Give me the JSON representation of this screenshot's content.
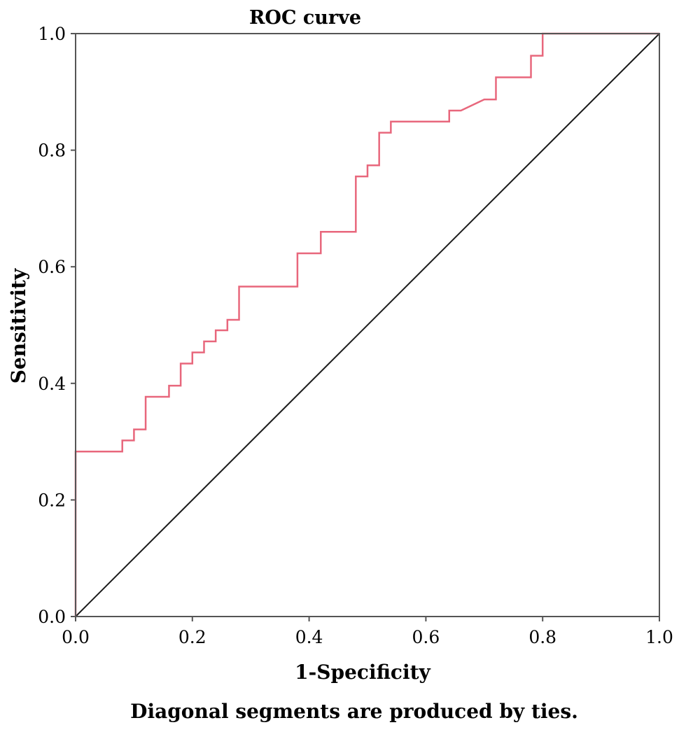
{
  "chart_data": {
    "type": "line",
    "title": "ROC curve",
    "xlabel": "1-Specificity",
    "ylabel": "Sensitivity",
    "footnote": "Diagonal segments are produced by ties.",
    "xlim": [
      0,
      1
    ],
    "ylim": [
      0,
      1
    ],
    "x_ticks": [
      "0.0",
      "0.2",
      "0.4",
      "0.6",
      "0.8",
      "1.0"
    ],
    "y_ticks": [
      "0.0",
      "0.2",
      "0.4",
      "0.6",
      "0.8",
      "1.0"
    ],
    "grid": false,
    "colors": {
      "roc": "#e8677c",
      "reference": "#1a1a1a",
      "frame": "#555555"
    },
    "series": [
      {
        "values": [
          [
            0.0,
            0.0
          ],
          [
            0.0,
            0.283
          ],
          [
            0.08,
            0.283
          ],
          [
            0.08,
            0.302
          ],
          [
            0.1,
            0.302
          ],
          [
            0.1,
            0.321
          ],
          [
            0.12,
            0.321
          ],
          [
            0.12,
            0.377
          ],
          [
            0.16,
            0.377
          ],
          [
            0.16,
            0.396
          ],
          [
            0.18,
            0.396
          ],
          [
            0.18,
            0.434
          ],
          [
            0.2,
            0.434
          ],
          [
            0.2,
            0.453
          ],
          [
            0.22,
            0.453
          ],
          [
            0.22,
            0.472
          ],
          [
            0.24,
            0.472
          ],
          [
            0.24,
            0.491
          ],
          [
            0.26,
            0.491
          ],
          [
            0.26,
            0.509
          ],
          [
            0.28,
            0.509
          ],
          [
            0.28,
            0.566
          ],
          [
            0.38,
            0.566
          ],
          [
            0.38,
            0.623
          ],
          [
            0.42,
            0.623
          ],
          [
            0.42,
            0.66
          ],
          [
            0.48,
            0.66
          ],
          [
            0.48,
            0.755
          ],
          [
            0.5,
            0.755
          ],
          [
            0.5,
            0.774
          ],
          [
            0.52,
            0.774
          ],
          [
            0.52,
            0.83
          ],
          [
            0.54,
            0.83
          ],
          [
            0.54,
            0.849
          ],
          [
            0.64,
            0.849
          ],
          [
            0.64,
            0.868
          ],
          [
            0.66,
            0.868
          ],
          [
            0.7,
            0.887
          ],
          [
            0.72,
            0.887
          ],
          [
            0.72,
            0.925
          ],
          [
            0.78,
            0.925
          ],
          [
            0.78,
            0.962
          ],
          [
            0.8,
            0.962
          ],
          [
            0.8,
            1.0
          ],
          [
            1.0,
            1.0
          ]
        ]
      },
      {
        "values": [
          [
            0.0,
            0.0
          ],
          [
            1.0,
            1.0
          ]
        ]
      }
    ]
  }
}
